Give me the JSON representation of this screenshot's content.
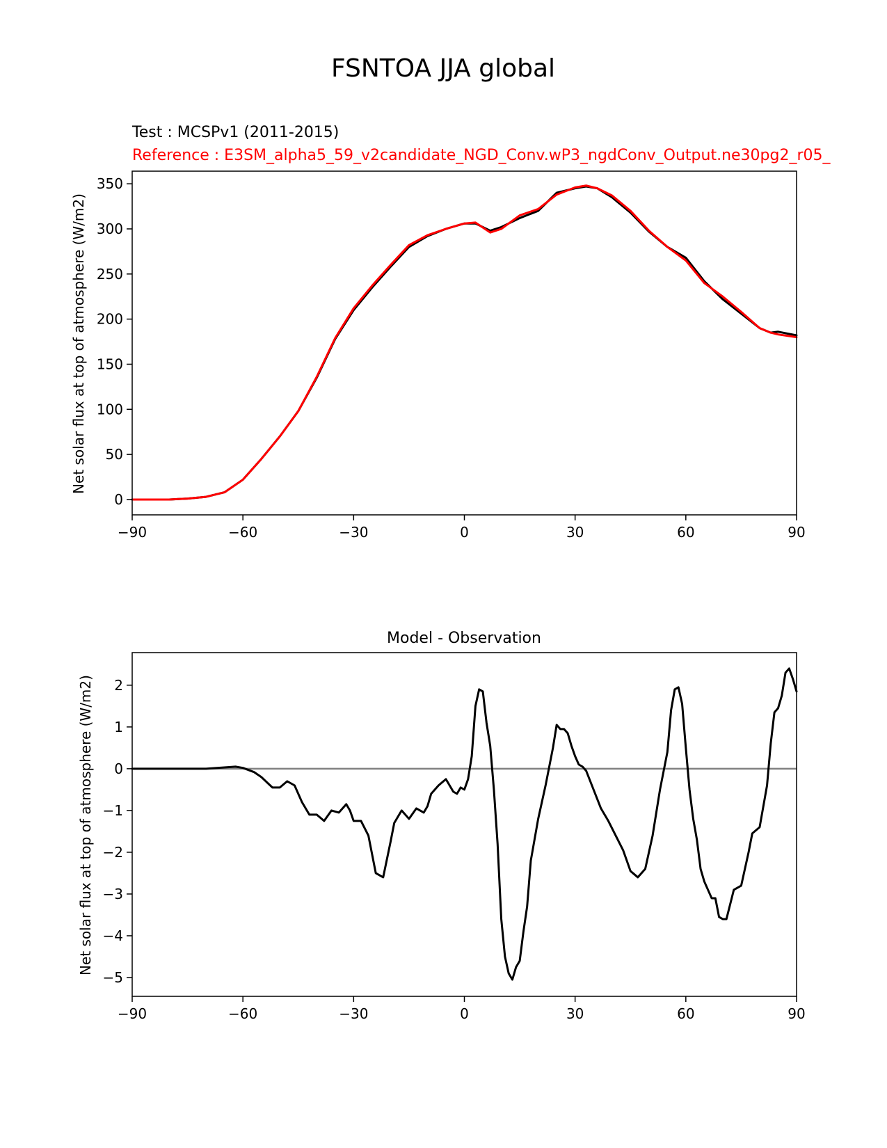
{
  "figure": {
    "title": "FSNTOA JJA global"
  },
  "chart_data": [
    {
      "type": "line",
      "subtitle_test": "Test : MCSPv1 (2011-2015)",
      "subtitle_reference": "Reference : E3SM_alpha5_59_v2candidate_NGD_Conv.wP3_ngdConv_Output.ne30pg2_r05_",
      "xlabel": "",
      "ylabel": "Net solar flux at top of atmosphere (W/m2)",
      "xlim": [
        -90,
        90
      ],
      "ylim": [
        -17,
        364
      ],
      "xticks": [
        -90,
        -60,
        -30,
        0,
        30,
        60,
        90
      ],
      "xtick_labels": [
        "−90",
        "−60",
        "−30",
        "0",
        "30",
        "60",
        "90"
      ],
      "yticks": [
        0,
        50,
        100,
        150,
        200,
        250,
        300,
        350
      ],
      "ytick_labels": [
        "0",
        "50",
        "100",
        "150",
        "200",
        "250",
        "300",
        "350"
      ],
      "x": [
        -90,
        -85,
        -80,
        -75,
        -70,
        -65,
        -60,
        -55,
        -50,
        -45,
        -40,
        -35,
        -30,
        -25,
        -20,
        -15,
        -10,
        -5,
        0,
        3,
        7,
        10,
        15,
        20,
        25,
        30,
        33,
        36,
        40,
        45,
        50,
        55,
        60,
        65,
        70,
        75,
        80,
        83,
        85,
        90
      ],
      "series": [
        {
          "name": "Test",
          "color": "#000000",
          "values": [
            0,
            0,
            0,
            1,
            3,
            8,
            22,
            45,
            70,
            98,
            135,
            178,
            210,
            235,
            258,
            280,
            292,
            300,
            306,
            306,
            298,
            302,
            312,
            320,
            340,
            345,
            347,
            345,
            335,
            318,
            297,
            280,
            268,
            242,
            222,
            206,
            190,
            185,
            186,
            182
          ],
          "linewidth": 3
        },
        {
          "name": "Reference",
          "color": "#ff0000",
          "values": [
            0,
            0,
            0,
            1,
            3,
            8,
            22,
            45,
            70,
            98,
            136,
            179,
            212,
            237,
            260,
            282,
            293,
            300,
            306,
            307,
            296,
            300,
            315,
            322,
            338,
            346,
            348,
            345,
            337,
            320,
            298,
            280,
            265,
            240,
            225,
            208,
            190,
            185,
            183,
            180
          ],
          "linewidth": 3
        }
      ]
    },
    {
      "type": "line",
      "title": "Model - Observation",
      "xlabel": "",
      "ylabel": "Net solar flux at top of atmosphere (W/m2)",
      "xlim": [
        -90,
        90
      ],
      "ylim": [
        -5.45,
        2.78
      ],
      "xticks": [
        -90,
        -60,
        -30,
        0,
        30,
        60,
        90
      ],
      "xtick_labels": [
        "−90",
        "−60",
        "−30",
        "0",
        "30",
        "60",
        "90"
      ],
      "yticks": [
        2,
        1,
        0,
        -1,
        -2,
        -3,
        -4,
        -5
      ],
      "ytick_labels": [
        "2",
        "1",
        "0",
        "−1",
        "−2",
        "−3",
        "−4",
        "−5"
      ],
      "zero_line": {
        "value": 0,
        "color": "#808080"
      },
      "series": [
        {
          "name": "Model - Observation",
          "color": "#000000",
          "linewidth": 3,
          "x": [
            -90,
            -70,
            -62,
            -60,
            -57,
            -55,
            -52,
            -50,
            -48,
            -46,
            -44,
            -42,
            -40,
            -38,
            -36,
            -34,
            -32,
            -31,
            -30,
            -28,
            -26,
            -24,
            -22,
            -20,
            -19,
            -17,
            -15,
            -13,
            -11,
            -10,
            -9,
            -7,
            -5,
            -3,
            -2,
            -1,
            0,
            1,
            2,
            3,
            4,
            5,
            6,
            7,
            8,
            9,
            10,
            11,
            12,
            13,
            14,
            15,
            16,
            17,
            18,
            20,
            22,
            24,
            25,
            26,
            27,
            28,
            29,
            30,
            31,
            32,
            33,
            35,
            37,
            39,
            41,
            43,
            45,
            47,
            49,
            51,
            53,
            55,
            56,
            57,
            58,
            59,
            60,
            61,
            62,
            63,
            64,
            65,
            66,
            67,
            68,
            69,
            70,
            71,
            72,
            73,
            75,
            77,
            78,
            80,
            82,
            83,
            84,
            85,
            86,
            87,
            88,
            89,
            90
          ],
          "values": [
            0,
            0,
            0.05,
            0.02,
            -0.08,
            -0.2,
            -0.45,
            -0.45,
            -0.3,
            -0.4,
            -0.8,
            -1.1,
            -1.1,
            -1.25,
            -1.0,
            -1.05,
            -0.85,
            -1.0,
            -1.25,
            -1.25,
            -1.6,
            -2.5,
            -2.6,
            -1.75,
            -1.3,
            -1.0,
            -1.2,
            -0.95,
            -1.05,
            -0.9,
            -0.6,
            -0.4,
            -0.25,
            -0.55,
            -0.6,
            -0.45,
            -0.5,
            -0.25,
            0.3,
            1.5,
            1.9,
            1.85,
            1.1,
            0.55,
            -0.5,
            -1.8,
            -3.6,
            -4.5,
            -4.9,
            -5.05,
            -4.75,
            -4.6,
            -3.9,
            -3.3,
            -2.2,
            -1.2,
            -0.4,
            0.5,
            1.05,
            0.95,
            0.95,
            0.85,
            0.55,
            0.3,
            0.1,
            0.05,
            -0.05,
            -0.5,
            -0.95,
            -1.25,
            -1.6,
            -1.95,
            -2.45,
            -2.6,
            -2.4,
            -1.6,
            -0.5,
            0.4,
            1.4,
            1.9,
            1.95,
            1.55,
            0.5,
            -0.5,
            -1.2,
            -1.7,
            -2.4,
            -2.7,
            -2.9,
            -3.1,
            -3.1,
            -3.55,
            -3.6,
            -3.6,
            -3.25,
            -2.9,
            -2.8,
            -2.0,
            -1.55,
            -1.4,
            -0.4,
            0.6,
            1.35,
            1.45,
            1.75,
            2.3,
            2.4,
            2.15,
            1.85
          ]
        }
      ]
    }
  ]
}
